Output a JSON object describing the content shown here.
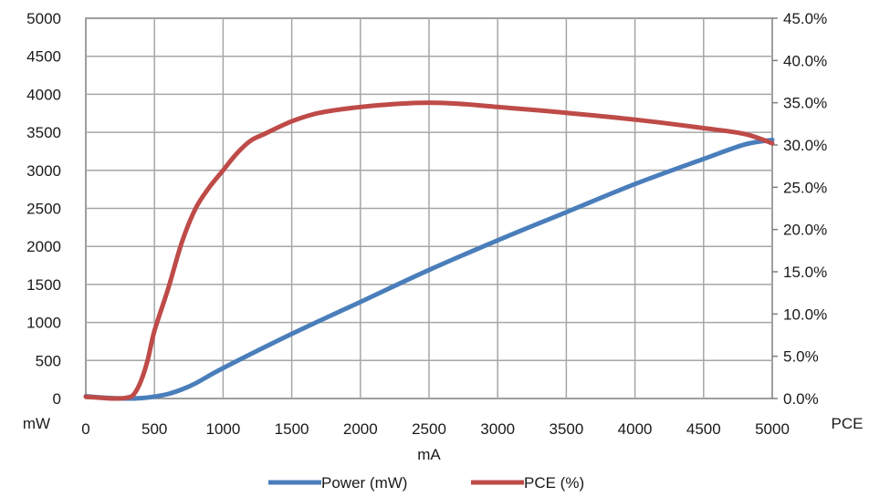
{
  "chart_data": {
    "type": "line",
    "xlabel": "mA",
    "x_ticks": [
      "0",
      "500",
      "1000",
      "1500",
      "2000",
      "2500",
      "3000",
      "3500",
      "4000",
      "4500",
      "5000"
    ],
    "xlim": [
      0,
      5000
    ],
    "left_axis": {
      "unit_label": "mW",
      "ticks": [
        "0",
        "500",
        "1000",
        "1500",
        "2000",
        "2500",
        "3000",
        "3500",
        "4000",
        "4500",
        "5000"
      ],
      "ylim": [
        0,
        5000
      ]
    },
    "right_axis": {
      "unit_label": "PCE",
      "ticks": [
        "0.0%",
        "5.0%",
        "10.0%",
        "15.0%",
        "20.0%",
        "25.0%",
        "30.0%",
        "35.0%",
        "40.0%",
        "45.0%"
      ],
      "ylim": [
        0,
        45
      ]
    },
    "grid": true,
    "legend_position": "bottom",
    "series": [
      {
        "name": "Power (mW)",
        "axis": "left",
        "color": "#4a7ebb",
        "x": [
          0,
          100,
          200,
          300,
          400,
          500,
          600,
          700,
          800,
          1000,
          1500,
          2000,
          2500,
          3000,
          3500,
          4000,
          4500,
          4800,
          5000
        ],
        "y": [
          30,
          15,
          5,
          0,
          5,
          25,
          60,
          120,
          200,
          400,
          850,
          1270,
          1690,
          2080,
          2450,
          2820,
          3150,
          3340,
          3400
        ]
      },
      {
        "name": "PCE (%)",
        "axis": "right",
        "color": "#be4b48",
        "x": [
          0,
          100,
          200,
          300,
          350,
          400,
          450,
          500,
          600,
          700,
          800,
          900,
          1000,
          1100,
          1200,
          1300,
          1500,
          1700,
          2000,
          2300,
          2500,
          2700,
          3000,
          3300,
          3500,
          4000,
          4500,
          4800,
          5000
        ],
        "y": [
          0.2,
          0.1,
          0.0,
          0.1,
          0.5,
          2.0,
          4.5,
          8.0,
          13.0,
          18.5,
          22.5,
          25.0,
          27.0,
          29.0,
          30.5,
          31.3,
          32.8,
          33.8,
          34.5,
          34.9,
          35.0,
          34.9,
          34.5,
          34.1,
          33.8,
          33.0,
          32.0,
          31.3,
          30.2
        ]
      }
    ]
  }
}
